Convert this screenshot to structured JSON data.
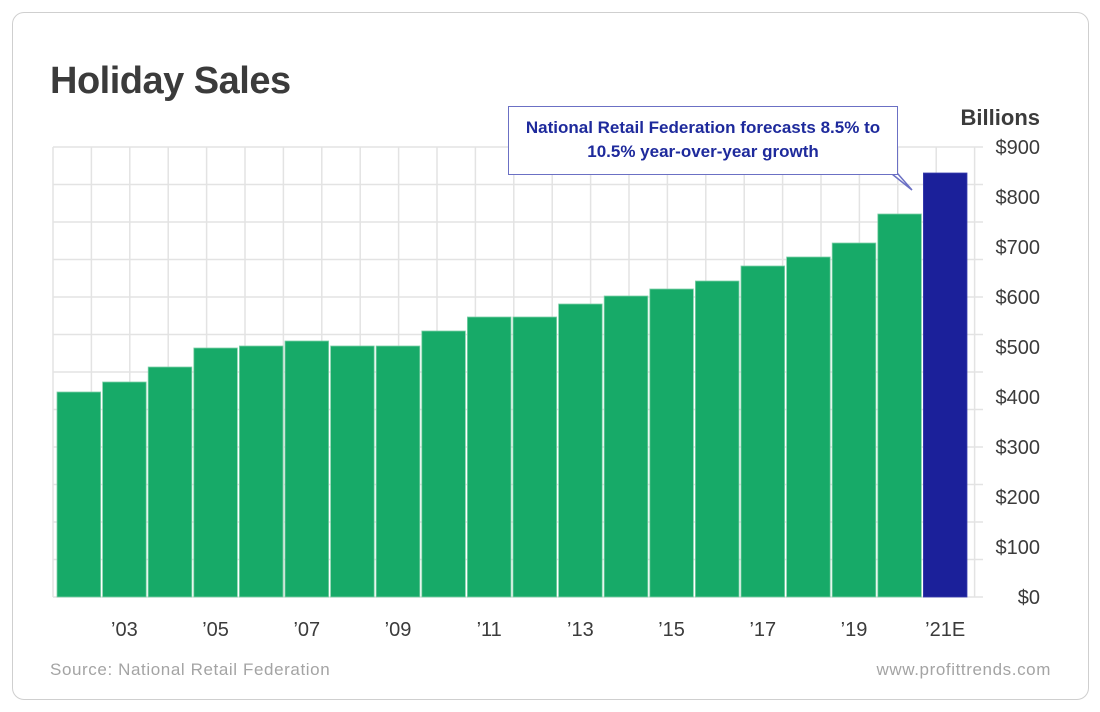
{
  "chart_data": {
    "type": "bar",
    "title": "Holiday Sales",
    "ylabel": "Billions",
    "ylim": [
      0,
      900
    ],
    "yticks": [
      "$0",
      "$100",
      "$200",
      "$300",
      "$400",
      "$500",
      "$600",
      "$700",
      "$800",
      "$900"
    ],
    "grid": true,
    "tick_labels": [
      "",
      "’03",
      "",
      "’05",
      "",
      "’07",
      "",
      "’09",
      "",
      "’11",
      "",
      "’13",
      "",
      "’15",
      "",
      "’17",
      "",
      "’19",
      "",
      "’21E"
    ],
    "values": [
      410,
      430,
      460,
      498,
      502,
      512,
      502,
      502,
      532,
      560,
      560,
      586,
      602,
      616,
      632,
      662,
      680,
      708,
      766,
      848
    ],
    "colors": {
      "actual": "#17aa68",
      "estimate": "#1b209a"
    },
    "estimate_index": 19,
    "annotation": "National Retail Federation forecasts 8.5% to 10.5% year-over-year growth"
  },
  "footer": {
    "source": "Source: National Retail Federation",
    "website": "www.profittrends.com"
  }
}
